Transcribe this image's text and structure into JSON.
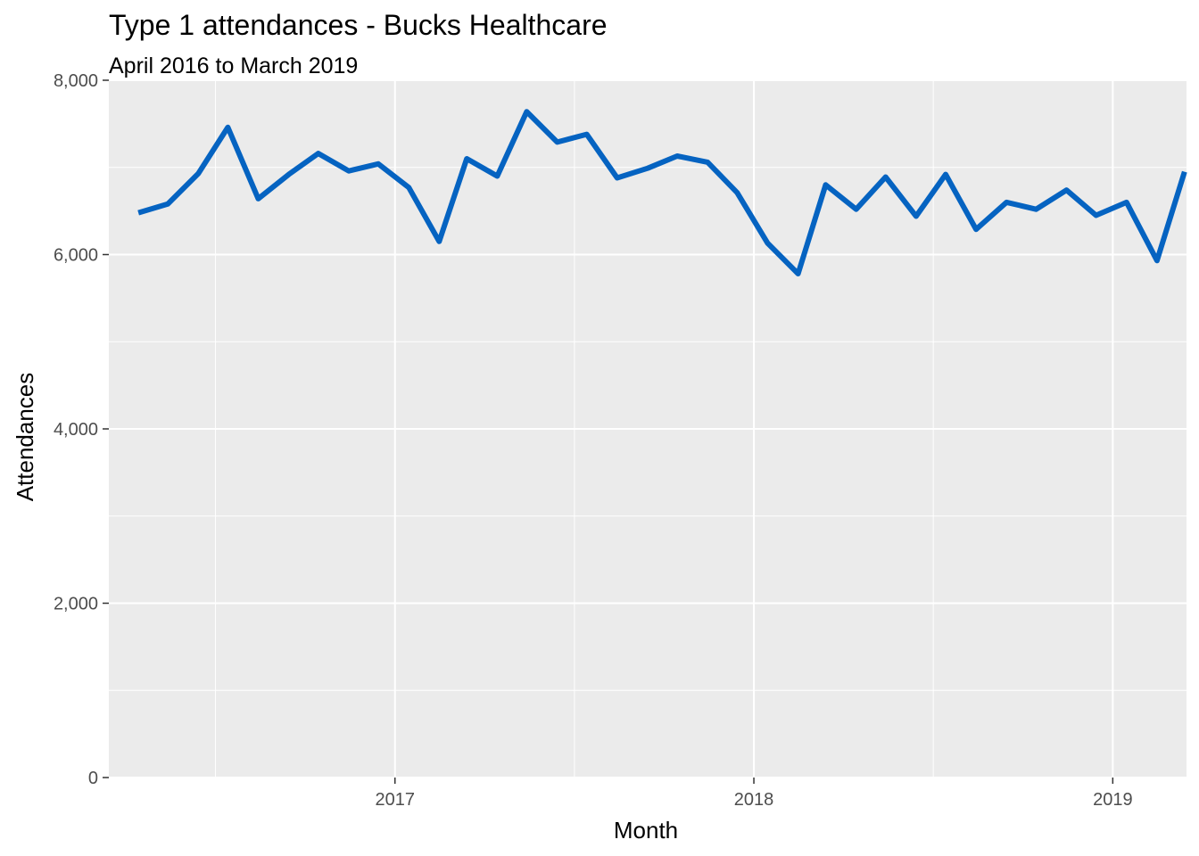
{
  "chart_data": {
    "type": "line",
    "title": "Type 1 attendances - Bucks Healthcare",
    "subtitle": "April 2016 to March 2019",
    "xlabel": "Month",
    "ylabel": "Attendances",
    "x": [
      "2016-04",
      "2016-05",
      "2016-06",
      "2016-07",
      "2016-08",
      "2016-09",
      "2016-10",
      "2016-11",
      "2016-12",
      "2017-01",
      "2017-02",
      "2017-03",
      "2017-04",
      "2017-05",
      "2017-06",
      "2017-07",
      "2017-08",
      "2017-09",
      "2017-10",
      "2017-11",
      "2017-12",
      "2018-01",
      "2018-02",
      "2018-03",
      "2018-04",
      "2018-05",
      "2018-06",
      "2018-07",
      "2018-08",
      "2018-09",
      "2018-10",
      "2018-11",
      "2018-12",
      "2019-01",
      "2019-02",
      "2019-03"
    ],
    "series": [
      {
        "values": [
          6480,
          6580,
          6930,
          7460,
          6640,
          6920,
          7160,
          6960,
          7040,
          6770,
          6150,
          7100,
          6900,
          7640,
          7290,
          7380,
          6880,
          6990,
          7130,
          7060,
          6710,
          6130,
          5780,
          6800,
          6520,
          6890,
          6440,
          6920,
          6290,
          6600,
          6520,
          6740,
          6450,
          6600,
          5930,
          6950
        ]
      }
    ],
    "xticks": [
      {
        "date": "2017-01-01",
        "label": "2017"
      },
      {
        "date": "2018-01-01",
        "label": "2018"
      },
      {
        "date": "2019-01-01",
        "label": "2019"
      }
    ],
    "yticks": [
      {
        "value": 0,
        "label": "0"
      },
      {
        "value": 2000,
        "label": "2,000"
      },
      {
        "value": 4000,
        "label": "4,000"
      },
      {
        "value": 6000,
        "label": "6,000"
      },
      {
        "value": 8000,
        "label": "8,000"
      }
    ],
    "ylim": [
      0,
      8000
    ],
    "xlim": [
      "2016-03-16",
      "2019-03-17"
    ],
    "grid": true,
    "colors": {
      "line": "#0563C1",
      "panel": "#EBEBEB",
      "grid": "#FFFFFF"
    }
  }
}
